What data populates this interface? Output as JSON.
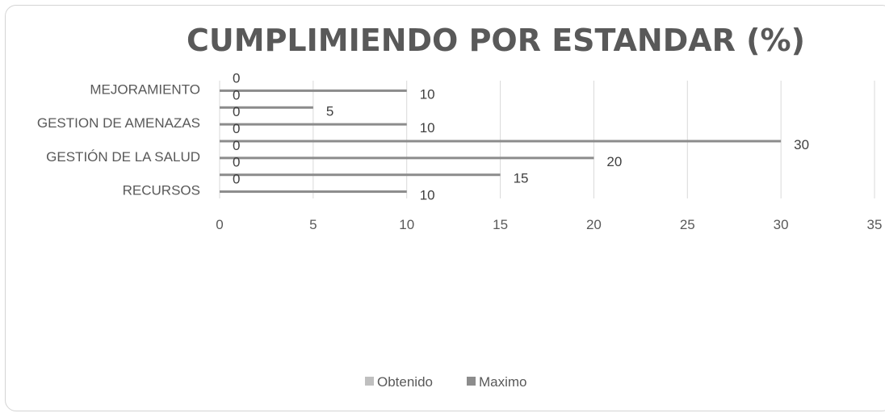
{
  "chart_data": {
    "type": "bar",
    "orientation": "horizontal",
    "title": "CUMPLIMIENDO POR ESTANDAR (%)",
    "xlabel": "",
    "ylabel": "",
    "categories": [
      "RECURSOS",
      "",
      "GESTIÓN DE LA SALUD",
      "",
      "GESTION DE AMENAZAS",
      "",
      "MEJORAMIENTO"
    ],
    "series": [
      {
        "name": "Obtenido",
        "values": [
          0,
          0,
          0,
          0,
          0,
          0,
          0
        ],
        "color": "#bfbfbf"
      },
      {
        "name": "Maximo",
        "values": [
          10,
          15,
          20,
          30,
          10,
          5,
          10
        ],
        "color": "#8c8c8c"
      }
    ],
    "xlim": [
      0,
      35
    ],
    "xticks": [
      0,
      5,
      10,
      15,
      20,
      25,
      30,
      35
    ],
    "grid": "vertical",
    "legend": "bottom",
    "data_labels": true
  }
}
